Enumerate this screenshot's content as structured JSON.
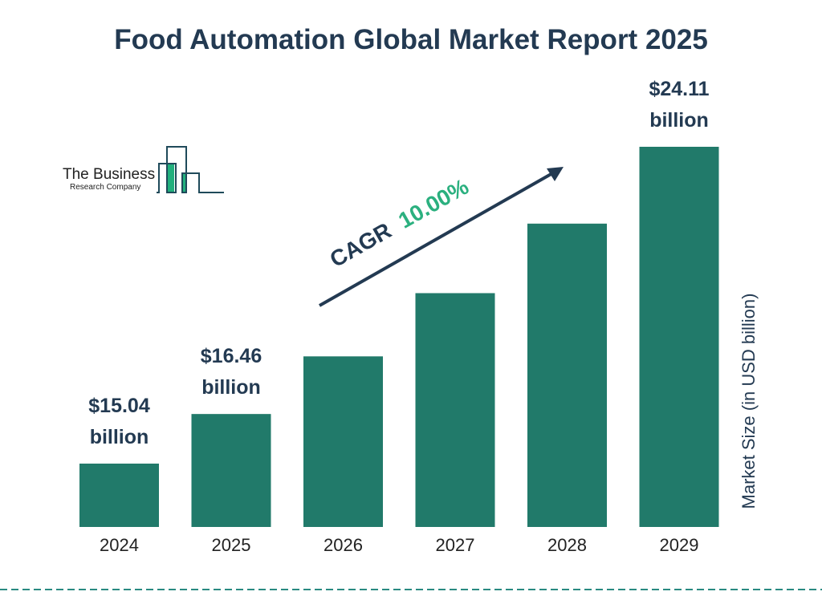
{
  "chart_data": {
    "type": "bar",
    "title": "Food Automation Global Market Report 2025",
    "categories": [
      "2024",
      "2025",
      "2026",
      "2027",
      "2028",
      "2029"
    ],
    "values": [
      15.04,
      16.46,
      18.11,
      19.92,
      21.91,
      24.11
    ],
    "data_labels": [
      {
        "index": 0,
        "line1": "$15.04",
        "line2": "billion"
      },
      {
        "index": 1,
        "line1": "$16.46",
        "line2": "billion"
      },
      {
        "index": 5,
        "line1": "$24.11",
        "line2": "billion"
      }
    ],
    "xlabel": "",
    "ylabel": "Market Size (in USD billion)",
    "grid": false,
    "bar_color": "#217a6a",
    "annotation": {
      "prefix": "CAGR",
      "value": "10.00%",
      "prefix_color": "#233a52",
      "value_color": "#2bb07f"
    }
  },
  "logo": {
    "line1": "The Business",
    "line2": "Research Company",
    "accent": "#22b07d",
    "stroke": "#1f4a5a"
  },
  "footer": {
    "divider_color": "#2a8a82"
  }
}
